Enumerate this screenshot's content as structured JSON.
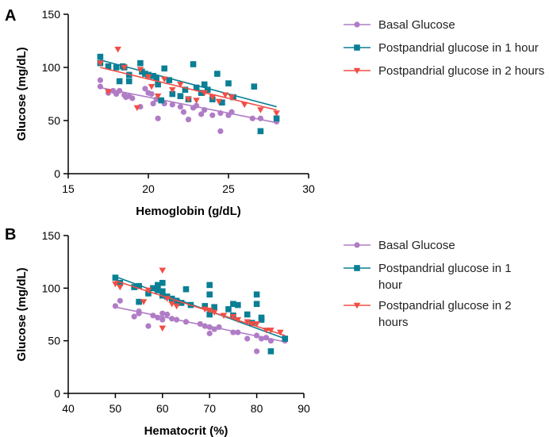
{
  "colors": {
    "basal": "#b07cc6",
    "pp1": "#0a7f95",
    "pp2": "#f04e45"
  },
  "chart_data": [
    {
      "type": "scatter",
      "panel": "A",
      "xlabel": "Hemoglobin (g/dL)",
      "ylabel": "Glucose (mg/dL)",
      "xlim": [
        15,
        30
      ],
      "ylim": [
        0,
        150
      ],
      "xticks": [
        15,
        20,
        25,
        30
      ],
      "yticks": [
        0,
        50,
        100,
        150
      ],
      "legend_position": "right",
      "series": [
        {
          "name": "Basal Glucose",
          "marker": "circle",
          "color_key": "basal",
          "points": [
            [
              17,
              88
            ],
            [
              17,
              82
            ],
            [
              17.5,
              76
            ],
            [
              17.8,
              78
            ],
            [
              18,
              75
            ],
            [
              18.2,
              78
            ],
            [
              18.5,
              74
            ],
            [
              18.6,
              72
            ],
            [
              18.8,
              73
            ],
            [
              19,
              71
            ],
            [
              19.5,
              63
            ],
            [
              19.8,
              80
            ],
            [
              20,
              76
            ],
            [
              20.2,
              75
            ],
            [
              20.3,
              66
            ],
            [
              20.5,
              70
            ],
            [
              20.6,
              52
            ],
            [
              21,
              66
            ],
            [
              21.5,
              65
            ],
            [
              22,
              63
            ],
            [
              22.2,
              58
            ],
            [
              22.5,
              51
            ],
            [
              22.8,
              62
            ],
            [
              23,
              64
            ],
            [
              23.3,
              56
            ],
            [
              23.5,
              60
            ],
            [
              24,
              55
            ],
            [
              24.5,
              40
            ],
            [
              24.5,
              57
            ],
            [
              25,
              55
            ],
            [
              25.2,
              58
            ],
            [
              26.5,
              52
            ],
            [
              27,
              52
            ],
            [
              28,
              49
            ]
          ],
          "trend": [
            [
              17,
              81
            ],
            [
              28,
              48
            ]
          ]
        },
        {
          "name": "Postpandrial glucose in 1 hour",
          "marker": "square",
          "color_key": "pp1",
          "points": [
            [
              17,
              110
            ],
            [
              17,
              104
            ],
            [
              17.5,
              101
            ],
            [
              18,
              100
            ],
            [
              18.2,
              87
            ],
            [
              18.4,
              101
            ],
            [
              18.5,
              100
            ],
            [
              18.8,
              93
            ],
            [
              18.8,
              87
            ],
            [
              19.5,
              104
            ],
            [
              19.6,
              96
            ],
            [
              19.8,
              94
            ],
            [
              20,
              93
            ],
            [
              20.3,
              92
            ],
            [
              20.5,
              90
            ],
            [
              20.6,
              84
            ],
            [
              20.8,
              69
            ],
            [
              21,
              99
            ],
            [
              21.3,
              88
            ],
            [
              21.5,
              75
            ],
            [
              22,
              73
            ],
            [
              22.3,
              79
            ],
            [
              22.5,
              70
            ],
            [
              22.8,
              103
            ],
            [
              23,
              81
            ],
            [
              23.3,
              76
            ],
            [
              23.5,
              84
            ],
            [
              23.7,
              79
            ],
            [
              24,
              70
            ],
            [
              24.3,
              94
            ],
            [
              24.6,
              67
            ],
            [
              25,
              85
            ],
            [
              25.3,
              72
            ],
            [
              26.6,
              82
            ],
            [
              27,
              40
            ],
            [
              28,
              52
            ]
          ],
          "trend": [
            [
              17,
              107
            ],
            [
              28,
              63
            ]
          ]
        },
        {
          "name": "Postpandrial glucose in 2 hours",
          "marker": "triangle-down",
          "color_key": "pp2",
          "points": [
            [
              17,
              104
            ],
            [
              17.5,
              77
            ],
            [
              18.1,
              117
            ],
            [
              18.5,
              100
            ],
            [
              19.3,
              62
            ],
            [
              19.5,
              98
            ],
            [
              20,
              91
            ],
            [
              20.2,
              82
            ],
            [
              20.6,
              73
            ],
            [
              21,
              89
            ],
            [
              21.5,
              79
            ],
            [
              22,
              84
            ],
            [
              22.5,
              70
            ],
            [
              23,
              69
            ],
            [
              23.5,
              76
            ],
            [
              24,
              72
            ],
            [
              24.4,
              68
            ],
            [
              24.8,
              74
            ],
            [
              25.2,
              72
            ],
            [
              26,
              65
            ],
            [
              27,
              60
            ],
            [
              28,
              57
            ]
          ],
          "trend": [
            [
              17,
              100
            ],
            [
              28,
              60
            ]
          ]
        }
      ]
    },
    {
      "type": "scatter",
      "panel": "B",
      "xlabel": "Hematocrit (%)",
      "ylabel": "Glucose (mg/dL)",
      "xlim": [
        40,
        90
      ],
      "ylim": [
        0,
        150
      ],
      "xticks": [
        40,
        50,
        60,
        70,
        80,
        90
      ],
      "yticks": [
        0,
        50,
        100,
        150
      ],
      "legend_position": "right",
      "series": [
        {
          "name": "Basal Glucose",
          "marker": "circle",
          "color_key": "basal",
          "points": [
            [
              50,
              83
            ],
            [
              51,
              88
            ],
            [
              54,
              73
            ],
            [
              55,
              76
            ],
            [
              55,
              78
            ],
            [
              57,
              64
            ],
            [
              58,
              74
            ],
            [
              59,
              72
            ],
            [
              60,
              70
            ],
            [
              60,
              76
            ],
            [
              61,
              75
            ],
            [
              62,
              71
            ],
            [
              63,
              70
            ],
            [
              65,
              68
            ],
            [
              68,
              66
            ],
            [
              69,
              64
            ],
            [
              70,
              63
            ],
            [
              70,
              57
            ],
            [
              71,
              61
            ],
            [
              72,
              63
            ],
            [
              75,
              58
            ],
            [
              76,
              58
            ],
            [
              78,
              52
            ],
            [
              80,
              55
            ],
            [
              80,
              40
            ],
            [
              81,
              52
            ],
            [
              82,
              53
            ],
            [
              83,
              50
            ],
            [
              86,
              50
            ]
          ],
          "trend": [
            [
              50,
              82
            ],
            [
              86,
              49
            ]
          ]
        },
        {
          "name": "Postpandrial glucose in 1\nhour",
          "marker": "square",
          "color_key": "pp1",
          "points": [
            [
              50,
              110
            ],
            [
              51,
              105
            ],
            [
              54,
              101
            ],
            [
              55,
              102
            ],
            [
              55,
              87
            ],
            [
              57,
              95
            ],
            [
              58,
              100
            ],
            [
              59,
              103
            ],
            [
              59,
              98
            ],
            [
              60,
              97
            ],
            [
              60,
              105
            ],
            [
              60,
              93
            ],
            [
              61,
              92
            ],
            [
              62,
              90
            ],
            [
              63,
              88
            ],
            [
              64,
              86
            ],
            [
              65,
              99
            ],
            [
              66,
              84
            ],
            [
              69,
              83
            ],
            [
              70,
              103
            ],
            [
              70,
              94
            ],
            [
              70,
              75
            ],
            [
              71,
              82
            ],
            [
              74,
              80
            ],
            [
              75,
              85
            ],
            [
              75,
              74
            ],
            [
              76,
              84
            ],
            [
              78,
              75
            ],
            [
              79,
              67
            ],
            [
              80,
              94
            ],
            [
              80,
              85
            ],
            [
              81,
              70
            ],
            [
              81,
              72
            ],
            [
              83,
              40
            ],
            [
              86,
              52
            ]
          ],
          "trend": [
            [
              50,
              111
            ],
            [
              86,
              52
            ]
          ]
        },
        {
          "name": "Postpandrial glucose in 2\nhours",
          "marker": "triangle-down",
          "color_key": "pp2",
          "points": [
            [
              50,
              104
            ],
            [
              51,
              101
            ],
            [
              56,
              87
            ],
            [
              57,
              98
            ],
            [
              60,
              117
            ],
            [
              60,
              62
            ],
            [
              61,
              90
            ],
            [
              62,
              85
            ],
            [
              63,
              83
            ],
            [
              69,
              80
            ],
            [
              70,
              79
            ],
            [
              71,
              77
            ],
            [
              73,
              74
            ],
            [
              75,
              73
            ],
            [
              76,
              70
            ],
            [
              78,
              68
            ],
            [
              79,
              66
            ],
            [
              80,
              66
            ],
            [
              82,
              60
            ],
            [
              83,
              60
            ],
            [
              85,
              58
            ]
          ],
          "trend": [
            [
              50,
              107
            ],
            [
              86,
              55
            ]
          ]
        }
      ]
    }
  ]
}
